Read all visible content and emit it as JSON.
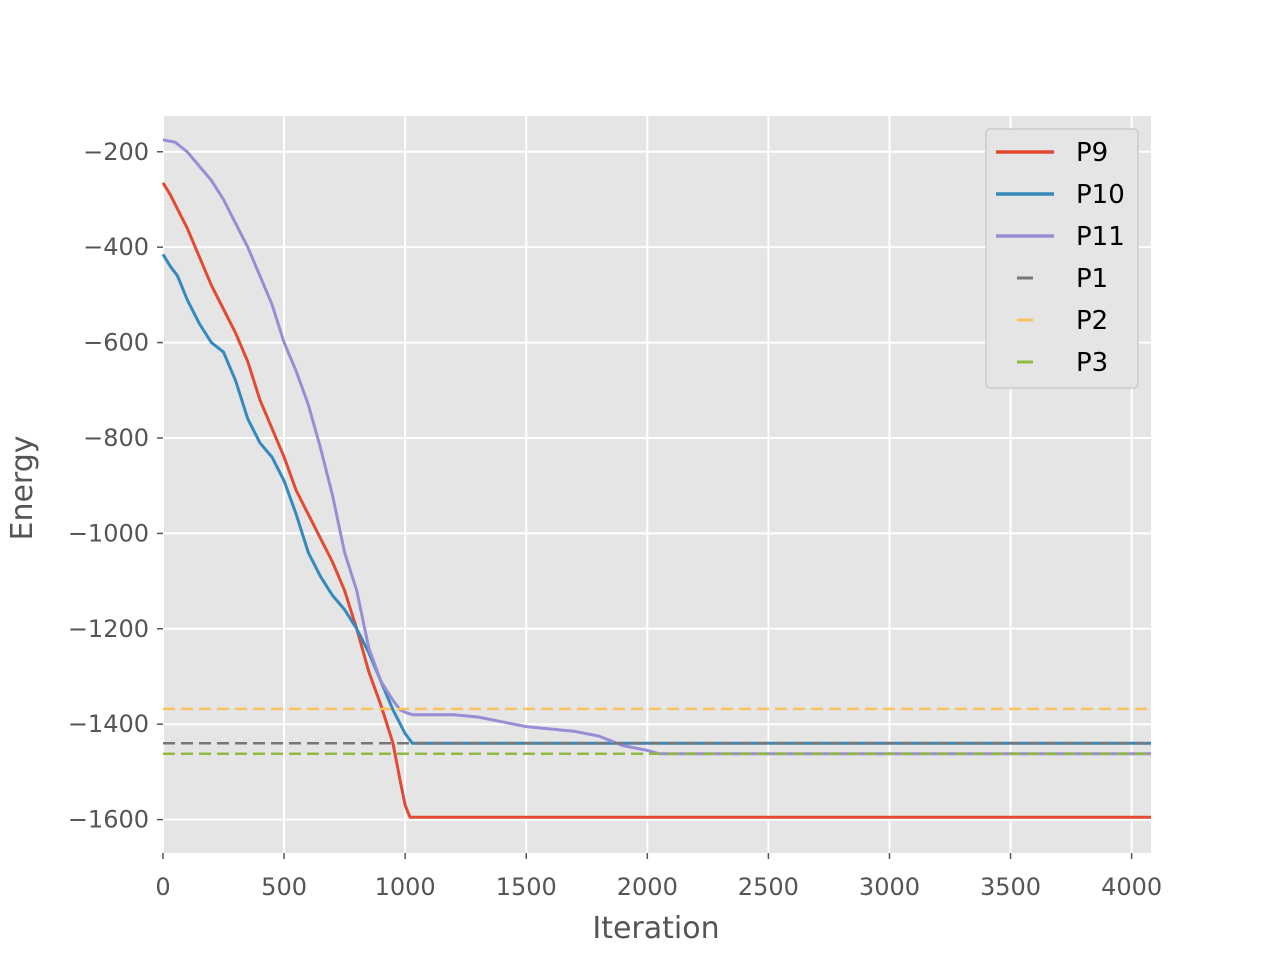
{
  "chart_data": {
    "type": "line",
    "title": "",
    "xlabel": "Iteration",
    "ylabel": "Energy",
    "xlim": [
      0,
      4080
    ],
    "ylim": [
      -1670,
      -125
    ],
    "xticks": [
      0,
      500,
      1000,
      1500,
      2000,
      2500,
      3000,
      3500,
      4000
    ],
    "yticks": [
      -1600,
      -1400,
      -1200,
      -1000,
      -800,
      -600,
      -400,
      -200
    ],
    "grid": true,
    "legend_position": "top-right",
    "series": [
      {
        "name": "P9",
        "color": "#E24A33",
        "style": "solid",
        "x": [
          0,
          30,
          60,
          100,
          150,
          200,
          250,
          300,
          350,
          400,
          450,
          500,
          550,
          600,
          650,
          700,
          750,
          800,
          850,
          900,
          950,
          980,
          1000,
          1020,
          1100,
          1500,
          2000,
          2500,
          3000,
          3500,
          4080
        ],
        "y": [
          -265,
          -290,
          -320,
          -360,
          -420,
          -480,
          -530,
          -580,
          -640,
          -720,
          -780,
          -840,
          -910,
          -960,
          -1010,
          -1060,
          -1120,
          -1200,
          -1290,
          -1360,
          -1440,
          -1520,
          -1570,
          -1595,
          -1595,
          -1595,
          -1595,
          -1595,
          -1595,
          -1595,
          -1595
        ]
      },
      {
        "name": "P10",
        "color": "#348ABD",
        "style": "solid",
        "x": [
          0,
          30,
          60,
          100,
          150,
          200,
          250,
          300,
          350,
          400,
          450,
          500,
          550,
          600,
          650,
          700,
          750,
          800,
          850,
          900,
          950,
          1000,
          1030,
          1100,
          1500,
          2000,
          2500,
          3000,
          3500,
          4080
        ],
        "y": [
          -415,
          -440,
          -460,
          -510,
          -560,
          -600,
          -620,
          -680,
          -760,
          -810,
          -840,
          -890,
          -960,
          -1040,
          -1090,
          -1130,
          -1160,
          -1200,
          -1250,
          -1310,
          -1370,
          -1420,
          -1440,
          -1440,
          -1440,
          -1440,
          -1440,
          -1440,
          -1440,
          -1440
        ]
      },
      {
        "name": "P11",
        "color": "#988ED5",
        "style": "solid",
        "x": [
          0,
          50,
          100,
          150,
          200,
          250,
          300,
          350,
          400,
          450,
          500,
          550,
          600,
          650,
          700,
          750,
          800,
          850,
          900,
          950,
          980,
          1000,
          1030,
          1100,
          1200,
          1300,
          1400,
          1500,
          1600,
          1700,
          1800,
          1900,
          2000,
          2050,
          2200,
          2500,
          3000,
          3500,
          4080
        ],
        "y": [
          -175,
          -180,
          -200,
          -230,
          -260,
          -300,
          -350,
          -400,
          -460,
          -520,
          -600,
          -660,
          -730,
          -820,
          -920,
          -1040,
          -1120,
          -1240,
          -1310,
          -1350,
          -1370,
          -1375,
          -1380,
          -1380,
          -1380,
          -1385,
          -1395,
          -1405,
          -1410,
          -1415,
          -1425,
          -1445,
          -1455,
          -1462,
          -1462,
          -1462,
          -1462,
          -1462,
          -1462
        ]
      },
      {
        "name": "P1",
        "color": "#777777",
        "style": "dashed",
        "x": [
          0,
          4080
        ],
        "y": [
          -1440,
          -1440
        ]
      },
      {
        "name": "P2",
        "color": "#FBC15E",
        "style": "dashed",
        "x": [
          0,
          4080
        ],
        "y": [
          -1368,
          -1368
        ]
      },
      {
        "name": "P3",
        "color": "#8EBA42",
        "style": "dashed",
        "x": [
          0,
          4080
        ],
        "y": [
          -1462,
          -1462
        ]
      }
    ]
  }
}
